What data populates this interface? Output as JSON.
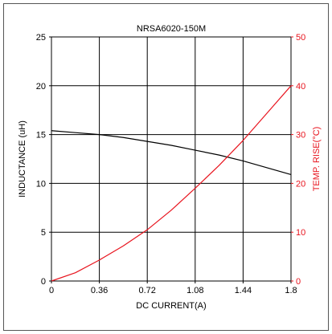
{
  "chart_data": {
    "type": "line",
    "title": "NRSA6020-150M",
    "xlabel": "DC CURRENT(A)",
    "ylabel": "INDUCTANCE (uH)",
    "y2label": "TEMP. RISE(°C)",
    "xlim": [
      0,
      1.8
    ],
    "ylim": [
      0,
      25
    ],
    "y2lim": [
      0,
      50
    ],
    "x_ticks": [
      "0",
      "0.36",
      "0.72",
      "1.08",
      "1.44",
      "1.8"
    ],
    "y_ticks": [
      "0",
      "5",
      "10",
      "15",
      "20",
      "25"
    ],
    "y2_ticks": [
      "0",
      "10",
      "20",
      "30",
      "40",
      "50"
    ],
    "grid": true,
    "colors": {
      "inductance": "#000000",
      "temp_rise": "#e8141e"
    },
    "series": [
      {
        "axis": "left",
        "color": "#000000",
        "x": [
          0,
          0.18,
          0.36,
          0.54,
          0.72,
          0.9,
          1.08,
          1.26,
          1.44,
          1.62,
          1.8
        ],
        "y": [
          15.4,
          15.2,
          15.0,
          14.7,
          14.3,
          13.9,
          13.4,
          12.9,
          12.3,
          11.6,
          10.9
        ]
      },
      {
        "axis": "right",
        "color": "#e8141e",
        "x": [
          0,
          0.18,
          0.36,
          0.54,
          0.72,
          0.9,
          1.08,
          1.26,
          1.44,
          1.62,
          1.8
        ],
        "y": [
          0,
          1.7,
          4.3,
          7.2,
          10.5,
          14.5,
          19.0,
          23.7,
          28.8,
          34.4,
          40.0
        ]
      }
    ]
  }
}
